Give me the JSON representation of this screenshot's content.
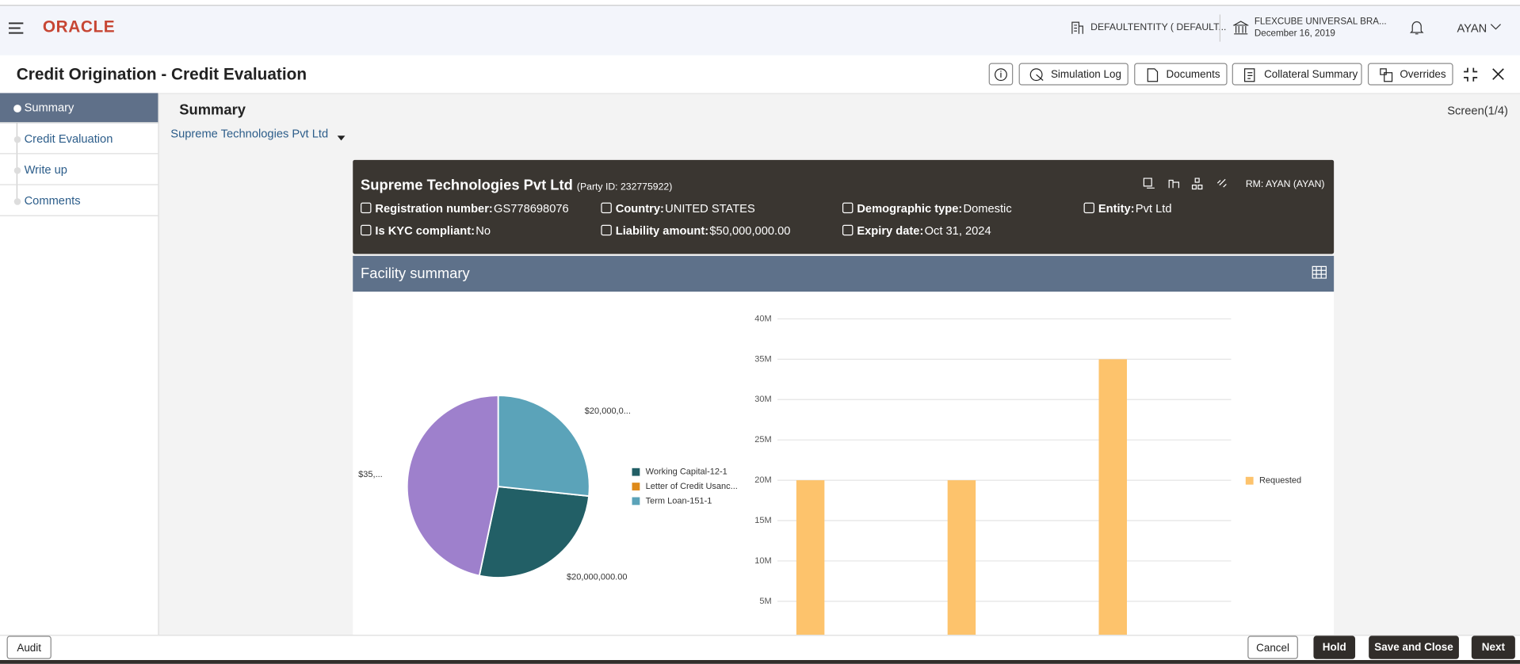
{
  "header": {
    "brand": "ORACLE",
    "entity": "DEFAULTENTITY ( DEFAULT...",
    "branch": "FLEXCUBE UNIVERSAL BRA...",
    "date": "December 16, 2019",
    "user": "AYAN"
  },
  "page": {
    "title": "Credit Origination - Credit Evaluation",
    "toolbar": [
      "Simulation Log",
      "Documents",
      "Collateral Summary",
      "Overrides"
    ]
  },
  "nav": [
    "Summary",
    "Credit Evaluation",
    "Write up",
    "Comments"
  ],
  "summary": {
    "heading": "Summary",
    "screen": "Screen(1/4)",
    "party_select": "Supreme Technologies Pvt Ltd"
  },
  "party": {
    "name": "Supreme Technologies Pvt Ltd",
    "party_id": "(Party ID: 232775922)",
    "rm": "RM: AYAN (AYAN)",
    "fields": [
      {
        "label": "Registration number:",
        "value": "GS778698076"
      },
      {
        "label": "Country:",
        "value": "UNITED STATES"
      },
      {
        "label": "Demographic type:",
        "value": "Domestic"
      },
      {
        "label": "Entity:",
        "value": "Pvt Ltd"
      },
      {
        "label": "Is KYC compliant:",
        "value": "No"
      },
      {
        "label": "Liability amount:",
        "value": "$50,000,000.00"
      },
      {
        "label": "Expiry date:",
        "value": "Oct 31, 2024"
      }
    ]
  },
  "facility": {
    "title": "Facility summary"
  },
  "chart_data": [
    {
      "type": "pie",
      "categories": [
        "Working Capital-12-1",
        "Letter of Credit Usanc...",
        "Term Loan-151-1"
      ],
      "values": [
        20000000,
        35000000,
        20000000
      ],
      "value_labels": [
        "$20,000,000.00",
        "$35,...",
        "$20,000,0..."
      ],
      "colors": [
        "#225f66",
        "#9e80cc",
        "#5ba3b9"
      ],
      "legend_colors": [
        "#225f66",
        "#de8a1b",
        "#5ba3b9"
      ]
    },
    {
      "type": "bar",
      "categories": [
        null,
        null,
        null
      ],
      "series": [
        {
          "name": "Requested",
          "color": "#fdc36c",
          "values": [
            20000000,
            20000000,
            35000000
          ]
        }
      ],
      "ylim": [
        0,
        40000000
      ],
      "yticks": [
        {
          "value": 5000000,
          "label": "5M"
        },
        {
          "value": 10000000,
          "label": "10M"
        },
        {
          "value": 15000000,
          "label": "15M"
        },
        {
          "value": 20000000,
          "label": "20M"
        },
        {
          "value": 25000000,
          "label": "25M"
        },
        {
          "value": 30000000,
          "label": "30M"
        },
        {
          "value": 35000000,
          "label": "35M"
        },
        {
          "value": 40000000,
          "label": "40M"
        }
      ],
      "grid": true
    }
  ],
  "footer": {
    "left": "Audit",
    "buttons": [
      "Cancel",
      "Hold",
      "Save and Close",
      "Next"
    ]
  }
}
